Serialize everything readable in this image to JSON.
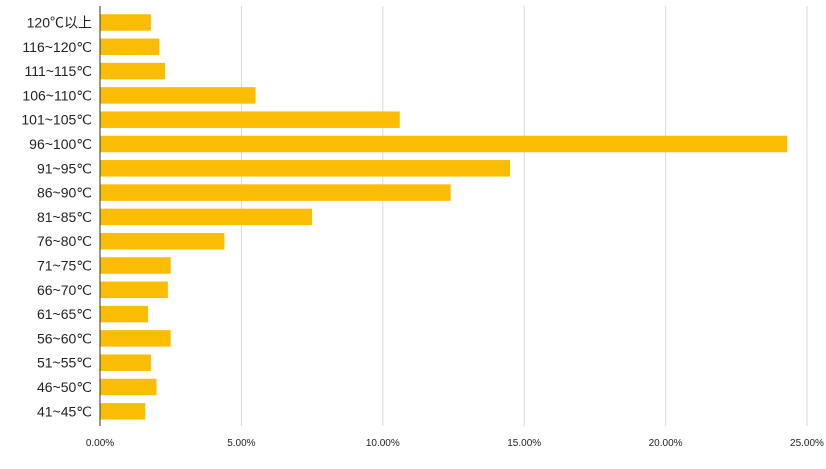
{
  "chart_data": {
    "type": "bar",
    "orientation": "horizontal",
    "categories": [
      "120℃以上",
      "116~120℃",
      "111~115℃",
      "106~110℃",
      "101~105℃",
      "96~100℃",
      "91~95℃",
      "86~90℃",
      "81~85℃",
      "76~80℃",
      "71~75℃",
      "66~70℃",
      "61~65℃",
      "56~60℃",
      "51~55℃",
      "46~50℃",
      "41~45℃"
    ],
    "series": [
      {
        "values": [
          1.8,
          2.1,
          2.3,
          5.5,
          10.6,
          24.3,
          14.5,
          12.4,
          7.5,
          4.4,
          2.5,
          2.4,
          1.7,
          2.5,
          1.8,
          2.0,
          1.6
        ]
      }
    ],
    "x_ticks": [
      "0.00%",
      "5.00%",
      "10.00%",
      "15.00%",
      "20.00%",
      "25.00%"
    ],
    "xlim": [
      0,
      25
    ],
    "grid": "vertical",
    "legend": "none",
    "colors": {
      "bar": "#FBBC04",
      "grid": "#d9d9d9",
      "axis": "#333333",
      "text": "#222222"
    }
  }
}
